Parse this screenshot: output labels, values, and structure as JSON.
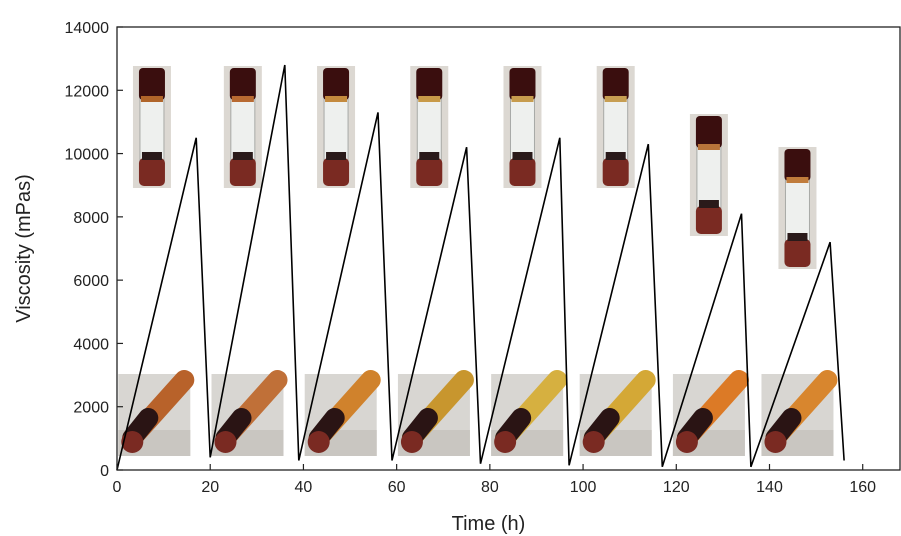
{
  "chart_data": {
    "type": "line",
    "title": "",
    "xlabel": "Time (h)",
    "ylabel": "Viscosity (mPas)",
    "xlim": [
      0,
      168
    ],
    "ylim": [
      0,
      14000
    ],
    "xticks": [
      0,
      20,
      40,
      60,
      80,
      100,
      120,
      140,
      160
    ],
    "yticks": [
      0,
      2000,
      4000,
      6000,
      8000,
      10000,
      12000,
      14000
    ],
    "grid": false,
    "legend": "none",
    "line_color": "#000000",
    "series": [
      {
        "x": [
          0,
          17,
          20,
          36,
          39,
          56,
          59,
          75,
          78,
          95,
          97,
          114,
          117,
          134,
          136,
          153,
          156
        ],
        "y": [
          0,
          10500,
          400,
          12800,
          300,
          11300,
          300,
          10200,
          200,
          10500,
          150,
          10300,
          100,
          8100,
          100,
          7200,
          300
        ]
      }
    ],
    "photos": [
      {
        "kind": "upright",
        "x": 7.5,
        "liquid": "#b0652a"
      },
      {
        "kind": "upright",
        "x": 27,
        "liquid": "#b86a32"
      },
      {
        "kind": "upright",
        "x": 47,
        "liquid": "#c48a3e"
      },
      {
        "kind": "upright",
        "x": 67,
        "liquid": "#c89a48"
      },
      {
        "kind": "upright",
        "x": 87,
        "liquid": "#c79c4e"
      },
      {
        "kind": "upright",
        "x": 107,
        "liquid": "#c79e52"
      },
      {
        "kind": "upright",
        "x": 127,
        "liquid": "#b8743a"
      },
      {
        "kind": "upright",
        "x": 146,
        "liquid": "#c07c3c"
      },
      {
        "kind": "tilted",
        "x": 8,
        "liquid": "#b8622a"
      },
      {
        "kind": "tilted",
        "x": 28,
        "liquid": "#c07038"
      },
      {
        "kind": "tilted",
        "x": 48,
        "liquid": "#d0822c"
      },
      {
        "kind": "tilted",
        "x": 68,
        "liquid": "#c8962e"
      },
      {
        "kind": "tilted",
        "x": 88,
        "liquid": "#d6b040"
      },
      {
        "kind": "tilted",
        "x": 107,
        "liquid": "#d4a836"
      },
      {
        "kind": "tilted",
        "x": 127,
        "liquid": "#dc7a26"
      },
      {
        "kind": "tilted",
        "x": 146,
        "liquid": "#d8862e"
      }
    ]
  }
}
